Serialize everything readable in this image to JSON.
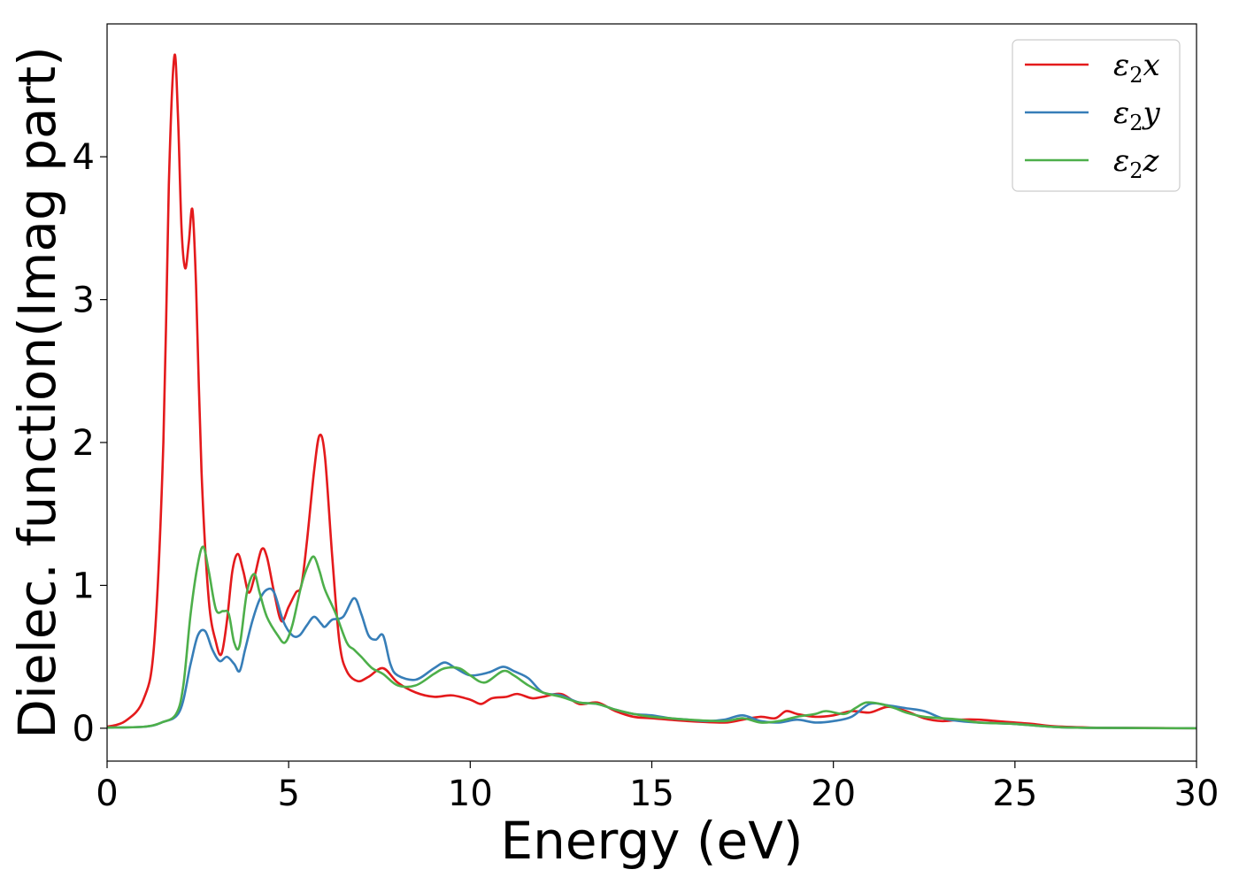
{
  "chart_data": {
    "type": "line",
    "xlabel": "Energy (eV)",
    "ylabel": "Dielec. function(Imag part)",
    "xlim": [
      0,
      30
    ],
    "ylim": [
      -0.23,
      4.93
    ],
    "xticks": [
      0,
      5,
      10,
      15,
      20,
      25,
      30
    ],
    "yticks": [
      0,
      1,
      2,
      3,
      4
    ],
    "grid": false,
    "legend_position": "top-right",
    "series": [
      {
        "name": "ε2x",
        "legend_sym": "ε",
        "legend_sub": "2",
        "legend_var": "x",
        "color": "#e41a1c",
        "points": [
          [
            0,
            0.01
          ],
          [
            0.5,
            0.05
          ],
          [
            1.0,
            0.2
          ],
          [
            1.3,
            0.6
          ],
          [
            1.55,
            2.0
          ],
          [
            1.7,
            3.8
          ],
          [
            1.85,
            4.7
          ],
          [
            1.95,
            4.3
          ],
          [
            2.05,
            3.5
          ],
          [
            2.15,
            3.22
          ],
          [
            2.25,
            3.4
          ],
          [
            2.35,
            3.63
          ],
          [
            2.45,
            3.1
          ],
          [
            2.6,
            1.8
          ],
          [
            2.8,
            0.9
          ],
          [
            3.0,
            0.6
          ],
          [
            3.15,
            0.52
          ],
          [
            3.3,
            0.75
          ],
          [
            3.45,
            1.1
          ],
          [
            3.6,
            1.22
          ],
          [
            3.75,
            1.1
          ],
          [
            3.9,
            0.95
          ],
          [
            4.05,
            1.05
          ],
          [
            4.25,
            1.25
          ],
          [
            4.4,
            1.2
          ],
          [
            4.6,
            0.95
          ],
          [
            4.8,
            0.75
          ],
          [
            5.0,
            0.85
          ],
          [
            5.2,
            0.95
          ],
          [
            5.35,
            1.0
          ],
          [
            5.5,
            1.3
          ],
          [
            5.7,
            1.8
          ],
          [
            5.85,
            2.05
          ],
          [
            6.0,
            1.9
          ],
          [
            6.2,
            1.2
          ],
          [
            6.4,
            0.6
          ],
          [
            6.6,
            0.4
          ],
          [
            6.9,
            0.33
          ],
          [
            7.2,
            0.36
          ],
          [
            7.6,
            0.42
          ],
          [
            8.0,
            0.32
          ],
          [
            8.5,
            0.25
          ],
          [
            9.0,
            0.22
          ],
          [
            9.5,
            0.23
          ],
          [
            10.0,
            0.2
          ],
          [
            10.3,
            0.17
          ],
          [
            10.6,
            0.21
          ],
          [
            11.0,
            0.22
          ],
          [
            11.3,
            0.24
          ],
          [
            11.7,
            0.21
          ],
          [
            12.0,
            0.22
          ],
          [
            12.5,
            0.24
          ],
          [
            13.0,
            0.17
          ],
          [
            13.5,
            0.18
          ],
          [
            14.0,
            0.12
          ],
          [
            14.5,
            0.08
          ],
          [
            15.0,
            0.07
          ],
          [
            16.0,
            0.05
          ],
          [
            17.0,
            0.04
          ],
          [
            17.5,
            0.06
          ],
          [
            18.0,
            0.08
          ],
          [
            18.4,
            0.07
          ],
          [
            18.7,
            0.12
          ],
          [
            19.0,
            0.1
          ],
          [
            19.5,
            0.08
          ],
          [
            20.0,
            0.09
          ],
          [
            20.5,
            0.12
          ],
          [
            21.0,
            0.11
          ],
          [
            21.5,
            0.15
          ],
          [
            22.0,
            0.12
          ],
          [
            22.5,
            0.07
          ],
          [
            23.0,
            0.05
          ],
          [
            23.5,
            0.06
          ],
          [
            24.0,
            0.06
          ],
          [
            24.5,
            0.05
          ],
          [
            25.0,
            0.04
          ],
          [
            25.5,
            0.03
          ],
          [
            26.0,
            0.015
          ],
          [
            27.0,
            0.005
          ],
          [
            28.0,
            0.002
          ],
          [
            30.0,
            0.0
          ]
        ]
      },
      {
        "name": "ε2y",
        "legend_sym": "ε",
        "legend_sub": "2",
        "legend_var": "y",
        "color": "#377eb8",
        "points": [
          [
            0,
            0.005
          ],
          [
            1.0,
            0.01
          ],
          [
            1.5,
            0.04
          ],
          [
            2.0,
            0.12
          ],
          [
            2.3,
            0.45
          ],
          [
            2.5,
            0.65
          ],
          [
            2.7,
            0.68
          ],
          [
            2.9,
            0.55
          ],
          [
            3.1,
            0.47
          ],
          [
            3.3,
            0.5
          ],
          [
            3.5,
            0.45
          ],
          [
            3.65,
            0.4
          ],
          [
            3.8,
            0.55
          ],
          [
            4.0,
            0.75
          ],
          [
            4.2,
            0.9
          ],
          [
            4.4,
            0.97
          ],
          [
            4.6,
            0.95
          ],
          [
            4.85,
            0.75
          ],
          [
            5.1,
            0.65
          ],
          [
            5.3,
            0.65
          ],
          [
            5.5,
            0.72
          ],
          [
            5.7,
            0.78
          ],
          [
            5.9,
            0.73
          ],
          [
            6.0,
            0.71
          ],
          [
            6.2,
            0.76
          ],
          [
            6.5,
            0.78
          ],
          [
            6.8,
            0.91
          ],
          [
            7.0,
            0.8
          ],
          [
            7.2,
            0.65
          ],
          [
            7.4,
            0.62
          ],
          [
            7.6,
            0.65
          ],
          [
            7.8,
            0.45
          ],
          [
            8.0,
            0.37
          ],
          [
            8.5,
            0.34
          ],
          [
            9.0,
            0.42
          ],
          [
            9.3,
            0.46
          ],
          [
            9.6,
            0.42
          ],
          [
            10.0,
            0.37
          ],
          [
            10.5,
            0.39
          ],
          [
            10.9,
            0.43
          ],
          [
            11.2,
            0.4
          ],
          [
            11.6,
            0.35
          ],
          [
            12.0,
            0.25
          ],
          [
            12.5,
            0.23
          ],
          [
            13.0,
            0.18
          ],
          [
            13.5,
            0.17
          ],
          [
            14.0,
            0.13
          ],
          [
            14.5,
            0.1
          ],
          [
            15.0,
            0.09
          ],
          [
            15.5,
            0.07
          ],
          [
            16.0,
            0.06
          ],
          [
            16.5,
            0.05
          ],
          [
            17.0,
            0.06
          ],
          [
            17.5,
            0.09
          ],
          [
            18.0,
            0.05
          ],
          [
            18.5,
            0.04
          ],
          [
            19.0,
            0.06
          ],
          [
            19.5,
            0.04
          ],
          [
            20.0,
            0.05
          ],
          [
            20.5,
            0.08
          ],
          [
            21.0,
            0.17
          ],
          [
            21.5,
            0.16
          ],
          [
            22.0,
            0.14
          ],
          [
            22.5,
            0.12
          ],
          [
            23.0,
            0.07
          ],
          [
            23.5,
            0.05
          ],
          [
            24.0,
            0.04
          ],
          [
            25.0,
            0.03
          ],
          [
            26.0,
            0.01
          ],
          [
            27.0,
            0.003
          ],
          [
            30.0,
            0.0
          ]
        ]
      },
      {
        "name": "ε2z",
        "legend_sym": "ε",
        "legend_sub": "2",
        "legend_var": "z",
        "color": "#4daf4a",
        "points": [
          [
            0,
            0.005
          ],
          [
            1.0,
            0.01
          ],
          [
            1.5,
            0.04
          ],
          [
            1.9,
            0.1
          ],
          [
            2.1,
            0.3
          ],
          [
            2.3,
            0.8
          ],
          [
            2.5,
            1.15
          ],
          [
            2.65,
            1.27
          ],
          [
            2.8,
            1.1
          ],
          [
            3.0,
            0.83
          ],
          [
            3.2,
            0.82
          ],
          [
            3.35,
            0.8
          ],
          [
            3.5,
            0.6
          ],
          [
            3.65,
            0.58
          ],
          [
            3.85,
            0.95
          ],
          [
            4.05,
            1.08
          ],
          [
            4.2,
            0.95
          ],
          [
            4.4,
            0.78
          ],
          [
            4.7,
            0.65
          ],
          [
            4.9,
            0.6
          ],
          [
            5.1,
            0.72
          ],
          [
            5.35,
            1.0
          ],
          [
            5.55,
            1.15
          ],
          [
            5.7,
            1.2
          ],
          [
            5.85,
            1.1
          ],
          [
            6.0,
            0.97
          ],
          [
            6.3,
            0.8
          ],
          [
            6.6,
            0.6
          ],
          [
            6.8,
            0.55
          ],
          [
            7.0,
            0.5
          ],
          [
            7.3,
            0.42
          ],
          [
            7.6,
            0.38
          ],
          [
            8.0,
            0.3
          ],
          [
            8.5,
            0.3
          ],
          [
            9.0,
            0.38
          ],
          [
            9.3,
            0.42
          ],
          [
            9.7,
            0.42
          ],
          [
            10.0,
            0.37
          ],
          [
            10.4,
            0.32
          ],
          [
            10.9,
            0.4
          ],
          [
            11.2,
            0.37
          ],
          [
            11.6,
            0.3
          ],
          [
            12.0,
            0.25
          ],
          [
            12.5,
            0.22
          ],
          [
            13.0,
            0.18
          ],
          [
            13.5,
            0.17
          ],
          [
            14.0,
            0.13
          ],
          [
            14.5,
            0.1
          ],
          [
            15.0,
            0.08
          ],
          [
            15.5,
            0.07
          ],
          [
            16.0,
            0.06
          ],
          [
            17.0,
            0.05
          ],
          [
            17.5,
            0.07
          ],
          [
            18.0,
            0.04
          ],
          [
            18.5,
            0.05
          ],
          [
            19.0,
            0.08
          ],
          [
            19.5,
            0.1
          ],
          [
            19.8,
            0.12
          ],
          [
            20.3,
            0.1
          ],
          [
            20.6,
            0.14
          ],
          [
            20.9,
            0.18
          ],
          [
            21.3,
            0.17
          ],
          [
            21.7,
            0.14
          ],
          [
            22.0,
            0.11
          ],
          [
            22.5,
            0.08
          ],
          [
            23.0,
            0.07
          ],
          [
            23.5,
            0.06
          ],
          [
            24.0,
            0.04
          ],
          [
            25.0,
            0.03
          ],
          [
            26.0,
            0.01
          ],
          [
            27.0,
            0.003
          ],
          [
            30.0,
            0.0
          ]
        ]
      }
    ]
  }
}
